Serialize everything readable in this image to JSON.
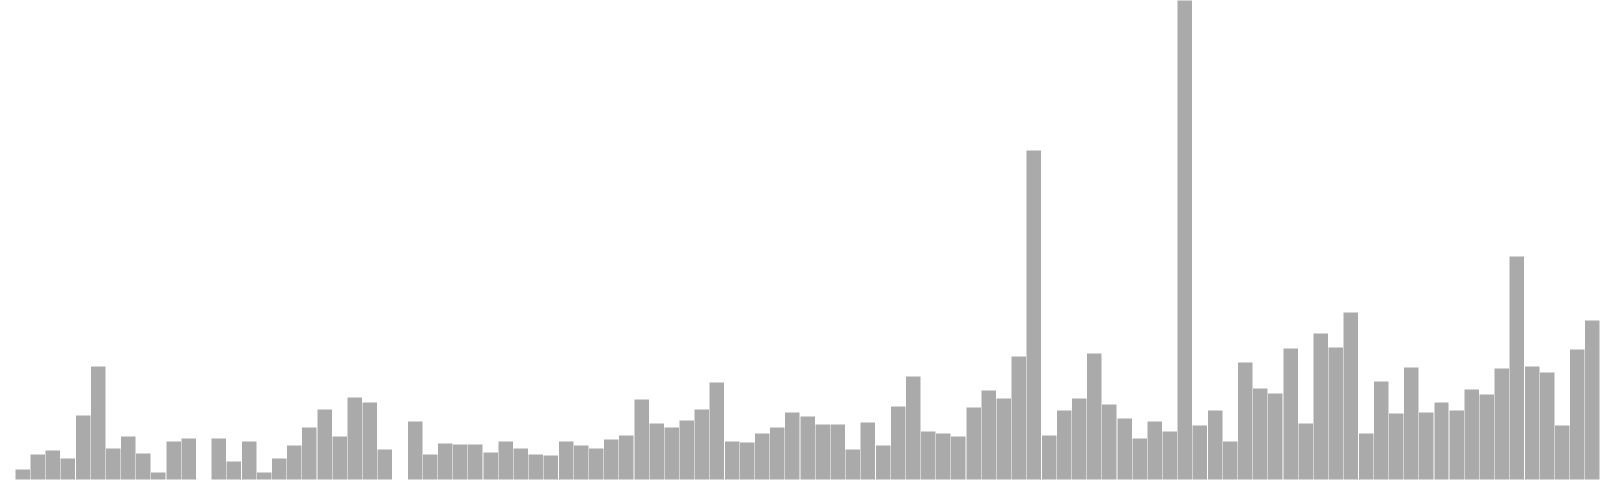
{
  "chart_data": {
    "type": "bar",
    "title": "",
    "xlabel": "",
    "ylabel": "",
    "axes_visible": false,
    "grid": false,
    "legend": "none",
    "bar_color": "#aaaaaa",
    "background": "#ffffff",
    "ylim": [
      0,
      480
    ],
    "values": [
      0,
      11,
      26,
      30,
      22,
      65,
      114,
      32,
      44,
      27,
      8,
      39,
      42,
      null,
      42,
      19,
      39,
      8,
      22,
      35,
      53,
      71,
      44,
      83,
      78,
      31,
      null,
      59,
      26,
      37,
      36,
      36,
      28,
      39,
      32,
      26,
      25,
      39,
      35,
      32,
      41,
      45,
      81,
      57,
      53,
      60,
      71,
      98,
      39,
      38,
      47,
      53,
      68,
      64,
      56,
      56,
      31,
      58,
      35,
      74,
      104,
      49,
      47,
      44,
      73,
      90,
      82,
      124,
      330,
      45,
      70,
      82,
      127,
      76,
      62,
      42,
      59,
      49,
      480,
      55,
      70,
      39,
      118,
      92,
      87,
      132,
      57,
      147,
      133,
      168,
      47,
      99,
      67,
      113,
      68,
      78,
      70,
      91,
      86,
      112,
      224,
      114,
      108,
      55,
      131,
      160
    ]
  }
}
